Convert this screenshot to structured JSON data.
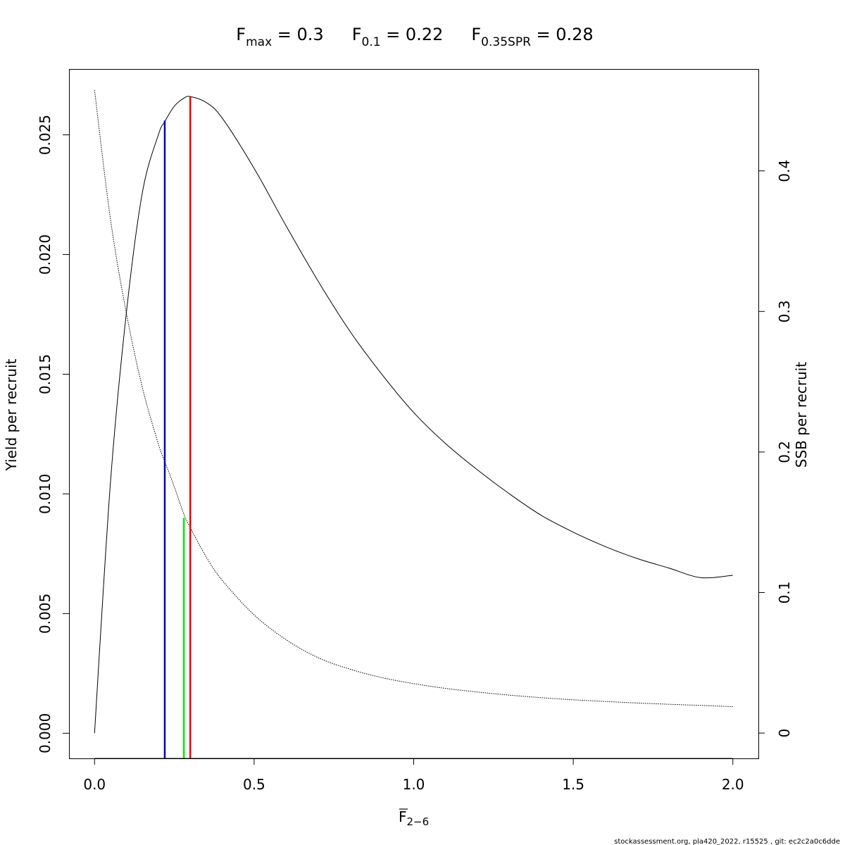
{
  "chart_data": {
    "type": "line",
    "title": {
      "fmax": {
        "base": "F",
        "sub": "max",
        "value": " = 0.3"
      },
      "f01": {
        "base": "F",
        "sub": "0.1",
        "value": " = 0.22"
      },
      "f35": {
        "base": "F",
        "sub": "0.35SPR",
        "value": " = 0.28"
      }
    },
    "xlabel": {
      "base": "F",
      "sub": "2−6"
    },
    "ylabel_left": "Yield per recruit",
    "ylabel_right": "SSB per recruit",
    "xlim": [
      -0.08,
      2.08
    ],
    "ylim_left": [
      -0.00105,
      0.02775
    ],
    "ylim_right": [
      -0.018,
      0.4725
    ],
    "x_ticks": [
      {
        "v": 0,
        "label": "0.0"
      },
      {
        "v": 0.5,
        "label": "0.5"
      },
      {
        "v": 1.0,
        "label": "1.0"
      },
      {
        "v": 1.5,
        "label": "1.5"
      },
      {
        "v": 2.0,
        "label": "2.0"
      }
    ],
    "y_left_ticks": [
      {
        "v": 0,
        "label": "0.000"
      },
      {
        "v": 0.005,
        "label": "0.005"
      },
      {
        "v": 0.01,
        "label": "0.010"
      },
      {
        "v": 0.015,
        "label": "0.015"
      },
      {
        "v": 0.02,
        "label": "0.020"
      },
      {
        "v": 0.025,
        "label": "0.025"
      }
    ],
    "y_right_ticks": [
      {
        "v": 0,
        "label": "0"
      },
      {
        "v": 0.1,
        "label": "0.1"
      },
      {
        "v": 0.2,
        "label": "0.2"
      },
      {
        "v": 0.3,
        "label": "0.3"
      },
      {
        "v": 0.4,
        "label": "0.4"
      }
    ],
    "series": [
      {
        "axis": "left",
        "style": "solid",
        "color": "#000000",
        "x": [
          0,
          0.05,
          0.1,
          0.15,
          0.2,
          0.22,
          0.25,
          0.28,
          0.3,
          0.35,
          0.4,
          0.5,
          0.6,
          0.7,
          0.8,
          0.9,
          1.0,
          1.1,
          1.2,
          1.3,
          1.4,
          1.5,
          1.6,
          1.7,
          1.8,
          1.9,
          2.0
        ],
        "values": [
          0.0,
          0.0105,
          0.0176,
          0.0226,
          0.025,
          0.02555,
          0.0262,
          0.02653,
          0.0266,
          0.02635,
          0.0257,
          0.0236,
          0.0212,
          0.0189,
          0.0168,
          0.015,
          0.0134,
          0.0121,
          0.011,
          0.01,
          0.0091,
          0.0084,
          0.0078,
          0.0073,
          0.0069,
          0.0065,
          0.0066
        ]
      },
      {
        "axis": "right",
        "style": "dotted",
        "color": "#000000",
        "x": [
          0,
          0.05,
          0.1,
          0.15,
          0.2,
          0.22,
          0.25,
          0.28,
          0.3,
          0.35,
          0.4,
          0.5,
          0.6,
          0.7,
          0.8,
          0.9,
          1.0,
          1.1,
          1.2,
          1.3,
          1.4,
          1.5,
          1.6,
          1.7,
          1.8,
          1.9,
          2.0
        ],
        "values": [
          0.4575,
          0.3655,
          0.2985,
          0.2457,
          0.2057,
          0.1932,
          0.1752,
          0.1557,
          0.1462,
          0.1253,
          0.1087,
          0.0841,
          0.0665,
          0.0537,
          0.0455,
          0.0395,
          0.0352,
          0.0318,
          0.0292,
          0.027,
          0.0252,
          0.0237,
          0.0225,
          0.0214,
          0.0205,
          0.0197,
          0.0188
        ]
      }
    ],
    "reference_lines": [
      {
        "name": "F0.1",
        "x": 0.22,
        "y_top": 0.0256,
        "color": "#0000cc"
      },
      {
        "name": "F0.35SPR",
        "x": 0.28,
        "y_top": 0.009,
        "color": "#00ee00"
      },
      {
        "name": "Fmax",
        "x": 0.3,
        "y_top": 0.0266,
        "color": "#ee0000"
      }
    ]
  },
  "footer": "stockassessment.org, pla420_2022, r15525 , git: ec2c2a0c6dde"
}
